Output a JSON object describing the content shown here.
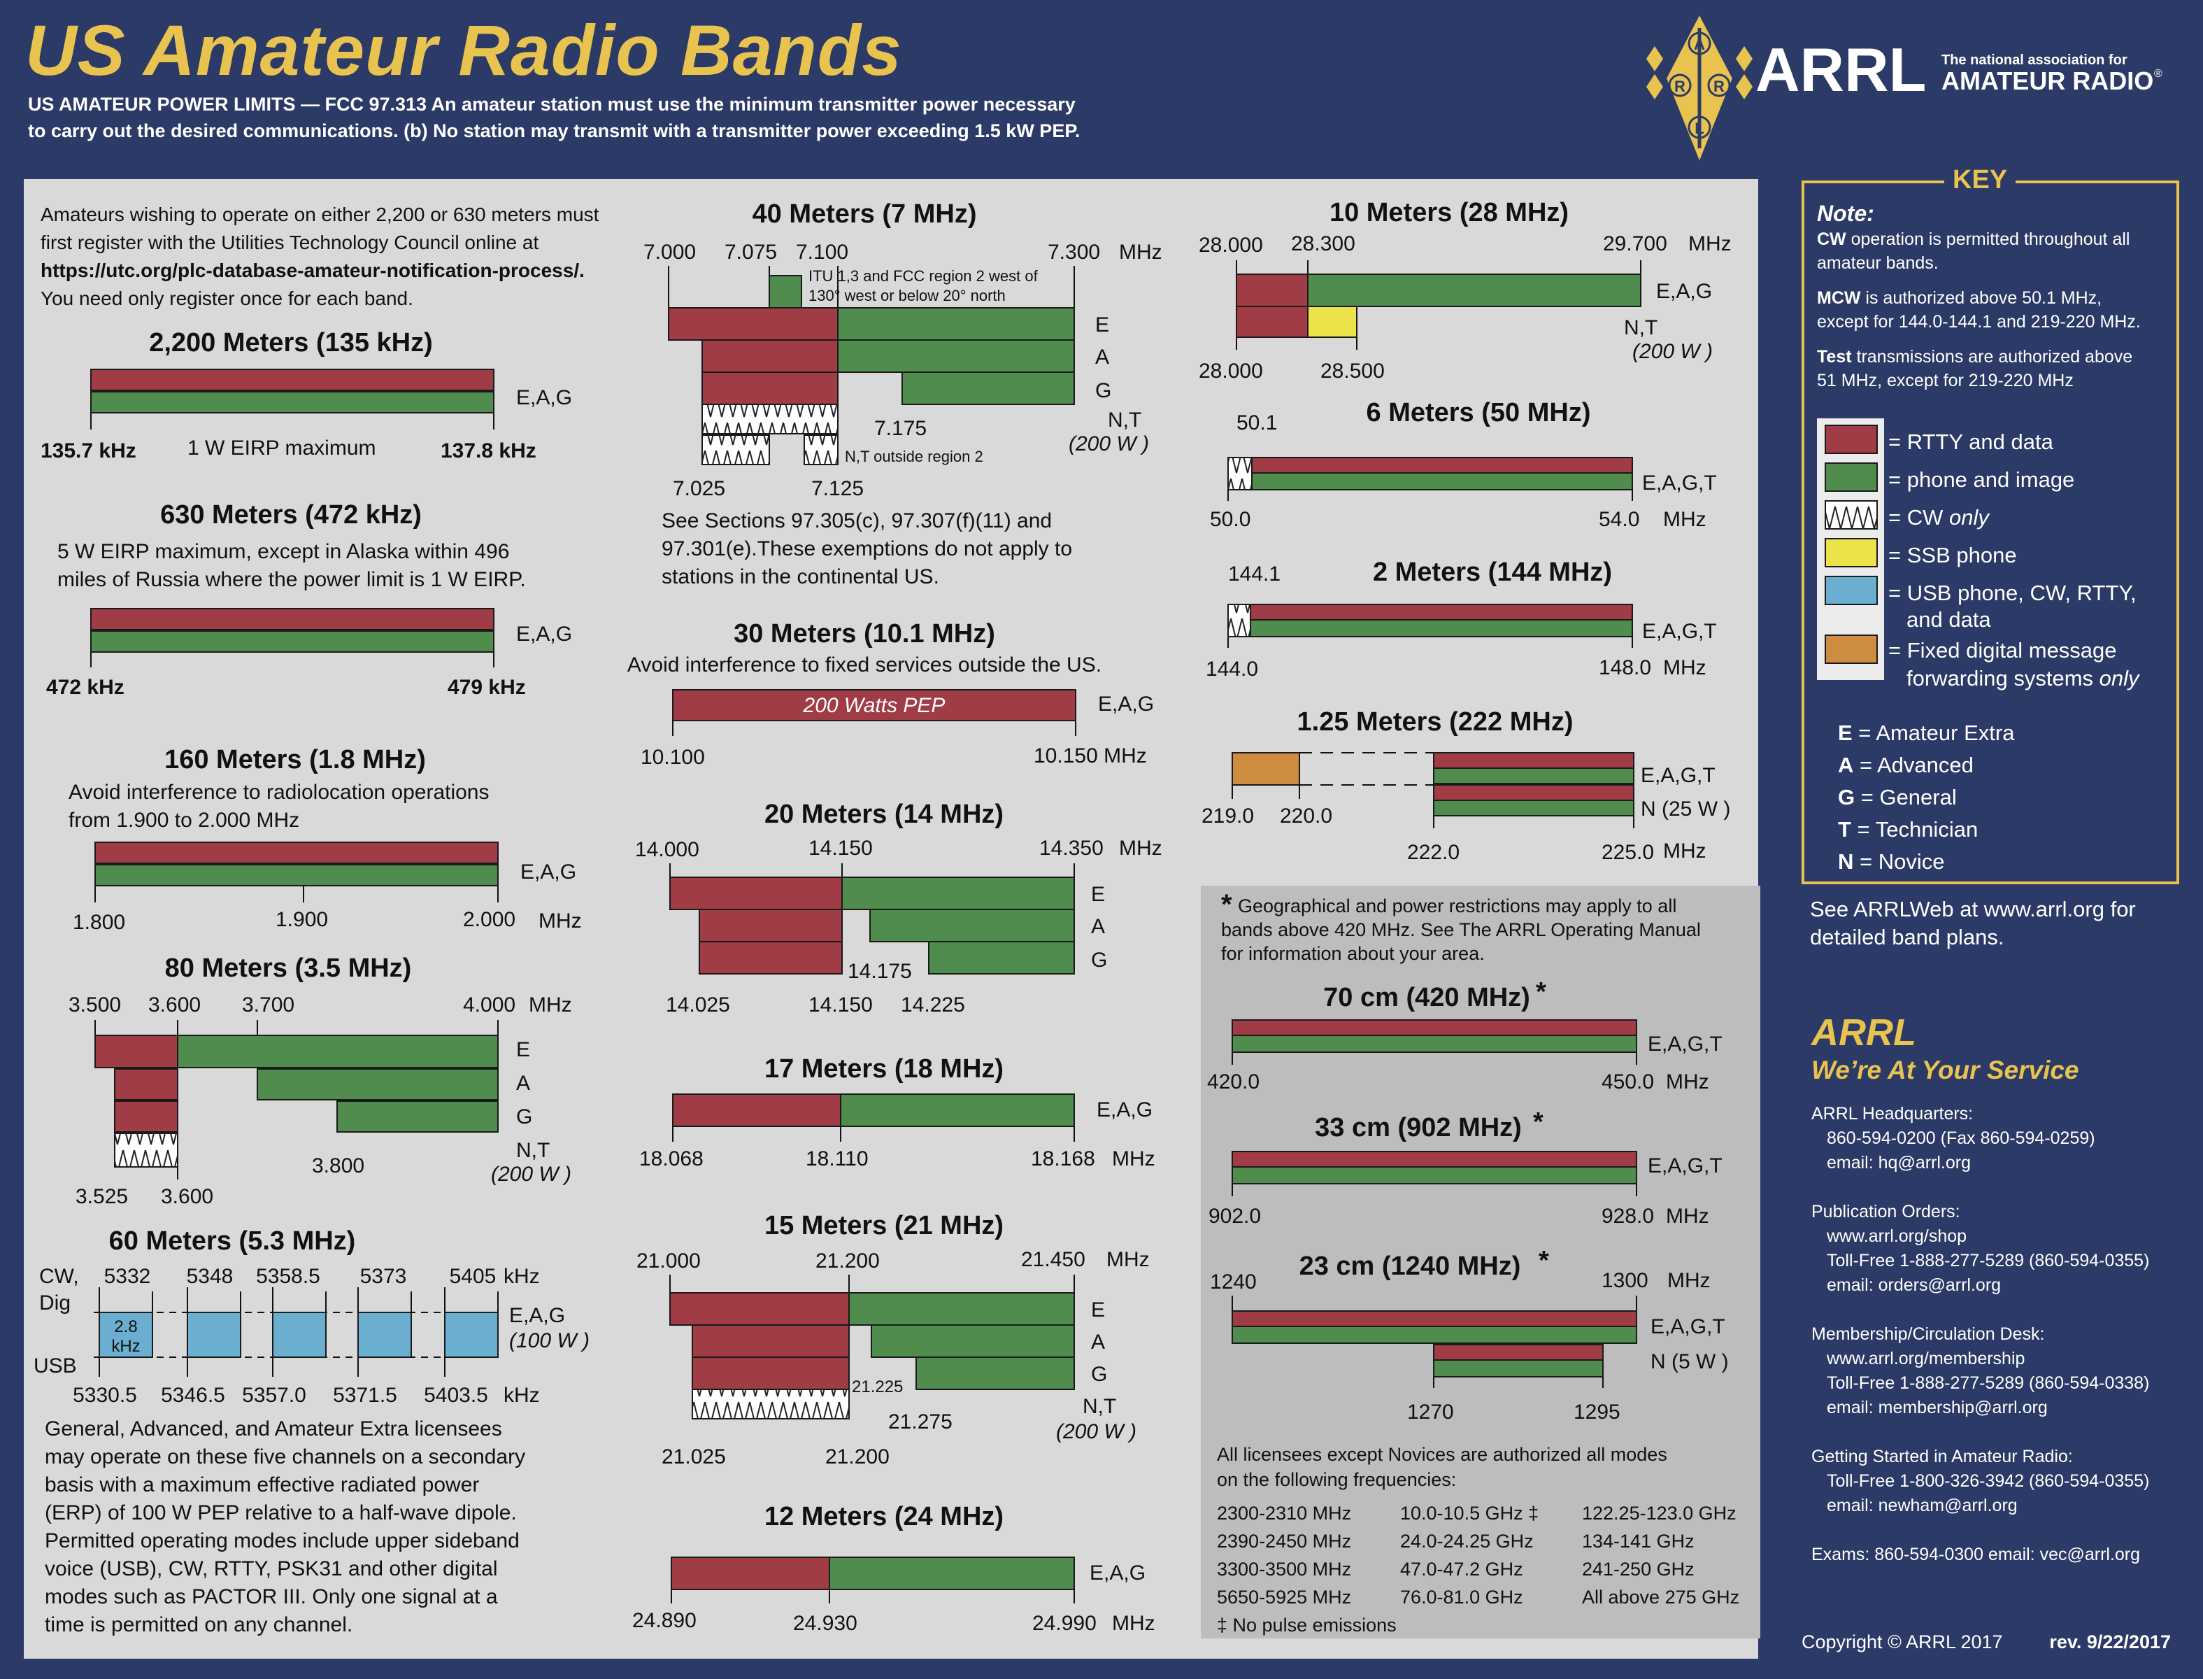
{
  "header": {
    "title": "US Amateur Radio Bands",
    "line1": "US AMATEUR POWER LIMITS — FCC 97.313   An amateur station must use the minimum transmitter power necessary",
    "line2": "to carry out the desired communications.   (b) No station may transmit with a transmitter power exceeding 1.5 kW PEP.",
    "logo_text": "ARRL",
    "logo_sub1": "The national association for",
    "logo_sub2": "AMATEUR RADIO",
    "logo_reg": "®",
    "logo_letters": [
      "A",
      "R",
      "R",
      "L"
    ]
  },
  "colors": {
    "rtty": "#a03c45",
    "phone": "#4f8c4e",
    "cw": "#ffffff",
    "ssb": "#ece24a",
    "usb": "#6aaed0",
    "fixed": "#cd8c3f",
    "gold": "#e9c350",
    "navy": "#2b3a66"
  },
  "intro": [
    "Amateurs wishing to operate on either 2,200 or 630 meters must",
    "first register with the Utilities Technology Council online at",
    "https://utc.org/plc-database-amateur-notification-process/.",
    "You need only register once for each band."
  ],
  "b2200": {
    "title": "2,200 Meters (135 kHz)",
    "lic": "E,A,G",
    "low": "135.7 kHz",
    "note": "1 W EIRP maximum",
    "high": "137.8 kHz"
  },
  "b630": {
    "title": "630 Meters (472 kHz)",
    "note1": "5 W EIRP maximum, except in Alaska within 496",
    "note2": "miles of Russia where the power limit is 1 W EIRP.",
    "lic": "E,A,G",
    "low": "472 kHz",
    "high": "479 kHz"
  },
  "b160": {
    "title": "160 Meters (1.8 MHz)",
    "note1": "Avoid interference to radiolocation operations",
    "note2": "from 1.900 to 2.000 MHz",
    "lic": "E,A,G",
    "f1": "1.800",
    "f2": "1.900",
    "f3": "2.000",
    "unit": "MHz"
  },
  "b80": {
    "title": "80 Meters (3.5 MHz)",
    "top": [
      "3.500",
      "3.600",
      "3.700",
      "4.000"
    ],
    "unit": "MHz",
    "lic": [
      "E",
      "A",
      "G",
      "N,T"
    ],
    "pwr": "(200 W )",
    "f3800": "3.800",
    "bot": [
      "3.525",
      "3.600"
    ]
  },
  "b60": {
    "title": "60 Meters (5.3 MHz)",
    "cw": "CW,",
    "dig": "Dig",
    "usb": "USB",
    "top": [
      "5332",
      "5348",
      "5358.5",
      "5373",
      "5405"
    ],
    "khz": "kHz",
    "bot": [
      "5330.5",
      "5346.5",
      "5357.0",
      "5371.5",
      "5403.5"
    ],
    "box1a": "2.8",
    "box1b": "kHz",
    "lic": "E,A,G",
    "pwr": "(100 W )",
    "text": [
      "General, Advanced, and Amateur Extra licensees",
      "may operate on these five channels on a secondary",
      "basis with a maximum effective radiated power",
      "(ERP) of 100 W PEP relative to a half-wave dipole.",
      "Permitted operating modes include upper sideband",
      "voice (USB), CW, RTTY, PSK31 and other digital",
      "modes such as PACTOR III. Only one signal at a",
      "time is permitted on any channel."
    ]
  },
  "b40": {
    "title": "40 Meters (7 MHz)",
    "top": [
      "7.000",
      "7.075",
      "7.100",
      "7.300"
    ],
    "unit": "MHz",
    "itu1": "ITU 1,3 and FCC region 2 west of",
    "itu2": "130° west or below 20° north",
    "lic": [
      "E",
      "A",
      "G",
      "N,T"
    ],
    "pwr": "(200 W )",
    "f7175": "7.175",
    "nt_out": "N,T outside region 2",
    "bot": [
      "7.025",
      "7.125"
    ],
    "note": [
      "See Sections 97.305(c), 97.307(f)(11) and",
      "97.301(e).These exemptions do not apply to",
      "stations in the continental US."
    ]
  },
  "b30": {
    "title": "30 Meters (10.1 MHz)",
    "note": "Avoid interference to fixed services outside the US.",
    "bar": "200 Watts PEP",
    "lic": "E,A,G",
    "low": "10.100",
    "high": "10.150 MHz"
  },
  "b20": {
    "title": "20 Meters (14 MHz)",
    "top": [
      "14.000",
      "14.150",
      "14.350"
    ],
    "unit": "MHz",
    "lic": [
      "E",
      "A",
      "G"
    ],
    "mid": "14.175",
    "bot": [
      "14.025",
      "14.150",
      "14.225"
    ]
  },
  "b17": {
    "title": "17 Meters (18 MHz)",
    "lic": "E,A,G",
    "f": [
      "18.068",
      "18.110",
      "18.168"
    ],
    "unit": "MHz"
  },
  "b15": {
    "title": "15 Meters (21 MHz)",
    "top": [
      "21.000",
      "21.200",
      "21.450"
    ],
    "unit": "MHz",
    "lic": [
      "E",
      "A",
      "G",
      "N,T"
    ],
    "pwr": "(200 W )",
    "m1": "21.225",
    "m2": "21.275",
    "bot": [
      "21.025",
      "21.200"
    ]
  },
  "b12": {
    "title": "12 Meters (24 MHz)",
    "lic": "E,A,G",
    "f": [
      "24.890",
      "24.930",
      "24.990"
    ],
    "unit": "MHz"
  },
  "b10": {
    "title": "10 Meters (28 MHz)",
    "top": [
      "28.000",
      "28.300",
      "29.700"
    ],
    "unit": "MHz",
    "lic": "E,A,G",
    "nt": "N,T",
    "pwr": "(200 W )",
    "bot": [
      "28.000",
      "28.500"
    ]
  },
  "b6": {
    "title": "6 Meters (50 MHz)",
    "f501": "50.1",
    "lic": "E,A,G,T",
    "low": "50.0",
    "high": "54.0",
    "unit": "MHz"
  },
  "b2": {
    "title": "2 Meters (144 MHz)",
    "f1441": "144.1",
    "lic": "E,A,G,T",
    "low": "144.0",
    "high": "148.0",
    "unit": "MHz"
  },
  "b125": {
    "title": "1.25 Meters (222 MHz)",
    "lic": "E,A,G,T",
    "n": "N (25 W )",
    "f": [
      "219.0",
      "220.0",
      "222.0",
      "225.0"
    ],
    "unit": "MHz"
  },
  "uhf": {
    "note": [
      "Geographical and power restrictions may apply to all",
      "bands above 420 MHz. See The ARRL Operating Manual",
      "for information about your area."
    ],
    "star": "*",
    "b70": {
      "title": "70 cm (420 MHz)",
      "lic": "E,A,G,T",
      "low": "420.0",
      "high": "450.0",
      "unit": "MHz"
    },
    "b33": {
      "title": "33 cm (902 MHz)",
      "lic": "E,A,G,T",
      "low": "902.0",
      "high": "928.0",
      "unit": "MHz"
    },
    "b23": {
      "title": "23 cm (1240 MHz)",
      "lic": "E,A,G,T",
      "n": "N (5 W )",
      "top": [
        "1240",
        "1300"
      ],
      "unit": "MHz",
      "bot": [
        "1270",
        "1295"
      ]
    },
    "all": [
      "All licensees except Novices are authorized all modes",
      "on the following frequencies:"
    ],
    "freqs": [
      [
        "2300-2310 MHz",
        "2390-2450 MHz",
        "3300-3500 MHz",
        "5650-5925 MHz"
      ],
      [
        "10.0-10.5 GHz ‡",
        "24.0-24.25 GHz",
        "47.0-47.2 GHz",
        "76.0-81.0 GHz"
      ],
      [
        "122.25-123.0 GHz",
        "134-141 GHz",
        "241-250 GHz",
        "All above 275 GHz"
      ]
    ],
    "nopulse": "‡ No pulse emissions"
  },
  "key": {
    "title": "KEY",
    "note_h": "Note:",
    "notes": [
      [
        "CW operation is permitted throughout all",
        "amateur bands."
      ],
      [
        "MCW is authorized above 50.1 MHz,",
        "except for 144.0-144.1 and 219-220 MHz."
      ],
      [
        "Test transmissions are authorized above",
        "51 MHz, except for 219-220 MHz"
      ]
    ],
    "items": [
      "= RTTY and data",
      "= phone and image",
      "= CW only",
      "= SSB phone",
      "= USB phone, CW, RTTY,",
      "and  data",
      "= Fixed digital message",
      "forwarding systems only"
    ],
    "lic": [
      "E = Amateur Extra",
      "A = Advanced",
      "G = General",
      "T = Technician",
      "N = Novice"
    ],
    "see1": "See ARRLWeb at www.arrl.org for",
    "see2": "detailed band plans."
  },
  "contact": {
    "brand": "ARRL",
    "tagline": "We’re At Your Service",
    "lines": [
      "ARRL Headquarters:",
      "   860-594-0200  (Fax 860-594-0259)",
      "   email:  hq@arrl.org",
      "",
      "Publication Orders:",
      "   www.arrl.org/shop",
      "   Toll-Free 1-888-277-5289 (860-594-0355)",
      "   email: orders@arrl.org",
      "",
      "Membership/Circulation Desk:",
      "   www.arrl.org/membership",
      "   Toll-Free 1-888-277-5289 (860-594-0338)",
      "   email: membership@arrl.org",
      "",
      "Getting Started in Amateur Radio:",
      "   Toll-Free 1-800-326-3942 (860-594-0355)",
      "   email: newham@arrl.org",
      "",
      "Exams:  860-594-0300   email: vec@arrl.org"
    ],
    "copyright": "Copyright © ARRL 2017",
    "rev": "rev. 9/22/2017"
  }
}
